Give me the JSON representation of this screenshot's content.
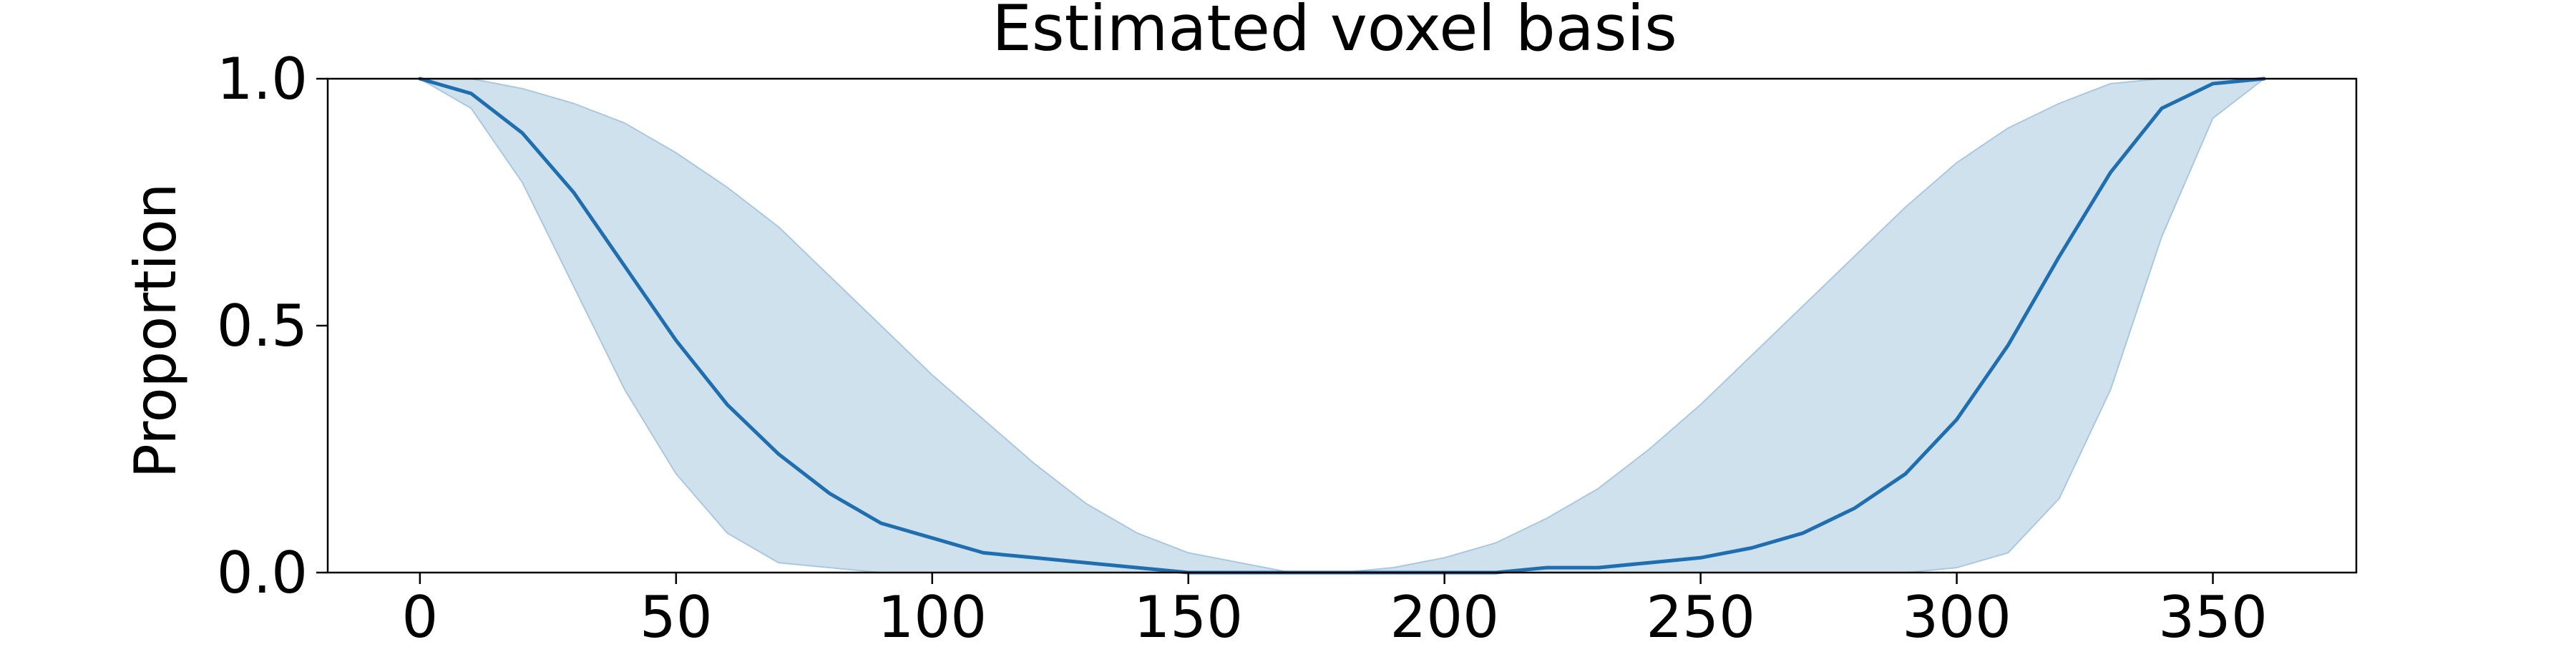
{
  "chart_data": {
    "type": "area",
    "title": "Estimated voxel basis",
    "xlabel": "",
    "ylabel": "Proportion",
    "xlim": [
      -18,
      378
    ],
    "ylim": [
      0,
      1
    ],
    "x_ticks": [
      0,
      50,
      100,
      150,
      200,
      250,
      300,
      350
    ],
    "y_ticks": [
      0.0,
      0.5,
      1.0
    ],
    "x_tick_labels": [
      "0",
      "50",
      "100",
      "150",
      "200",
      "250",
      "300",
      "350"
    ],
    "y_tick_labels": [
      "0.0",
      "0.5",
      "1.0"
    ],
    "grid": false,
    "legend": "none",
    "series": [
      {
        "kind": "band",
        "color": "#a9c8e0",
        "lower": {
          "x": [
            0,
            10,
            20,
            30,
            40,
            50,
            60,
            70,
            80,
            90,
            100,
            110,
            120,
            130,
            140,
            150,
            160,
            170,
            180,
            190,
            200,
            210,
            220,
            230,
            240,
            250,
            260,
            270,
            280,
            290,
            300,
            310,
            320,
            330,
            340,
            350,
            360
          ],
          "y": [
            1.0,
            0.94,
            0.79,
            0.58,
            0.37,
            0.2,
            0.08,
            0.02,
            0.01,
            0.0,
            0.0,
            0.0,
            0.0,
            0.0,
            0.0,
            0.0,
            0.0,
            0.0,
            0.0,
            0.0,
            0.0,
            0.0,
            0.0,
            0.0,
            0.0,
            0.0,
            0.0,
            0.0,
            0.0,
            0.0,
            0.01,
            0.04,
            0.15,
            0.37,
            0.68,
            0.92,
            1.0
          ]
        },
        "upper": {
          "x": [
            0,
            10,
            20,
            30,
            40,
            50,
            60,
            70,
            80,
            90,
            100,
            110,
            120,
            130,
            140,
            150,
            160,
            170,
            180,
            190,
            200,
            210,
            220,
            230,
            240,
            250,
            260,
            270,
            280,
            290,
            300,
            310,
            320,
            330,
            340,
            350,
            360
          ],
          "y": [
            1.0,
            1.0,
            0.98,
            0.95,
            0.91,
            0.85,
            0.78,
            0.7,
            0.6,
            0.5,
            0.4,
            0.31,
            0.22,
            0.14,
            0.08,
            0.04,
            0.02,
            0.0,
            0.0,
            0.01,
            0.03,
            0.06,
            0.11,
            0.17,
            0.25,
            0.34,
            0.44,
            0.54,
            0.64,
            0.74,
            0.83,
            0.9,
            0.95,
            0.99,
            1.0,
            1.0,
            1.0
          ]
        }
      },
      {
        "kind": "line",
        "color": "#1f6fb0",
        "x": [
          0,
          10,
          20,
          30,
          40,
          50,
          60,
          70,
          80,
          90,
          100,
          110,
          120,
          130,
          140,
          150,
          160,
          170,
          180,
          190,
          200,
          210,
          220,
          230,
          240,
          250,
          260,
          270,
          280,
          290,
          300,
          310,
          320,
          330,
          340,
          350,
          360
        ],
        "y": [
          1.0,
          0.97,
          0.89,
          0.77,
          0.62,
          0.47,
          0.34,
          0.24,
          0.16,
          0.1,
          0.07,
          0.04,
          0.03,
          0.02,
          0.01,
          0.0,
          0.0,
          0.0,
          0.0,
          0.0,
          0.0,
          0.0,
          0.01,
          0.01,
          0.02,
          0.03,
          0.05,
          0.08,
          0.13,
          0.2,
          0.31,
          0.46,
          0.64,
          0.81,
          0.94,
          0.99,
          1.0
        ]
      }
    ]
  }
}
